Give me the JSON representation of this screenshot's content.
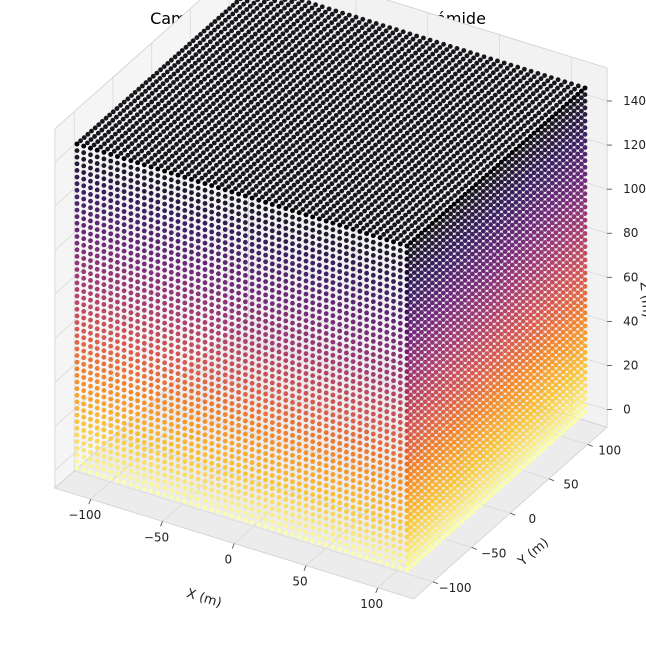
{
  "chart_data": {
    "type": "scatter",
    "projection": "3d",
    "title": "Campo Piezoeléctrico en la Gran Pirámide",
    "xlabel": "X (m)",
    "ylabel": "Y (m)",
    "zlabel": "Z (m)",
    "xlim": [
      -115,
      115
    ],
    "ylim": [
      -115,
      115
    ],
    "zlim": [
      0,
      147
    ],
    "x_ticks": [
      -100,
      -50,
      0,
      50,
      100
    ],
    "y_ticks": [
      -100,
      -50,
      0,
      50,
      100
    ],
    "z_ticks": [
      0,
      20,
      40,
      60,
      80,
      100,
      120,
      140
    ],
    "grid": true,
    "colormap": "inferno_r",
    "color_by": "z",
    "point_grid": {
      "x": {
        "start": -115,
        "stop": 115,
        "count": 50
      },
      "y": {
        "start": -115,
        "stop": 115,
        "count": 50
      },
      "z": {
        "start": 0,
        "stop": 147,
        "count": 50
      }
    },
    "colors": {
      "pane": "#f2f2f2",
      "grid": "#d9d9d9",
      "low": "#fcffa4",
      "high": "#000004"
    }
  }
}
